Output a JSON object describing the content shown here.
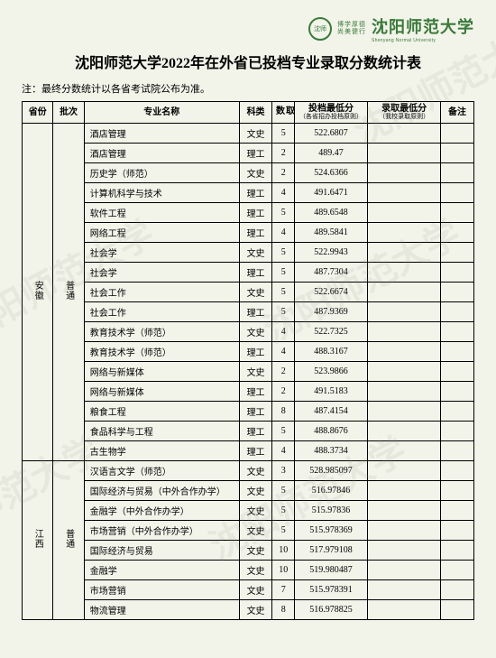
{
  "logo": {
    "badge_text": "沈师",
    "motto_line1": "博学厚德",
    "motto_line2": "尚美健行",
    "name_cn": "沈阳师范大学",
    "name_en": "Shenyang Normal University"
  },
  "title": "沈阳师范大学2022年在外省已投档专业录取分数统计表",
  "note": "注：最终分数统计以各省考试院公布为准。",
  "columns": {
    "province": "省份",
    "batch": "批次",
    "major": "专业名称",
    "category": "科类",
    "count": "录取数",
    "min1": "投档最低分",
    "min1_sub": "（各省招办投档原则）",
    "min2": "录取最低分",
    "min2_sub": "（我校录取原则）",
    "remark": "备注"
  },
  "groups": [
    {
      "province": "安徽",
      "batch": "普通",
      "rows": [
        {
          "major": "酒店管理",
          "cat": "文史",
          "num": "5",
          "s1": "522.6807",
          "s2": "",
          "rm": ""
        },
        {
          "major": "酒店管理",
          "cat": "理工",
          "num": "2",
          "s1": "489.47",
          "s2": "",
          "rm": ""
        },
        {
          "major": "历史学（师范）",
          "cat": "文史",
          "num": "2",
          "s1": "524.6366",
          "s2": "",
          "rm": ""
        },
        {
          "major": "计算机科学与技术",
          "cat": "理工",
          "num": "4",
          "s1": "491.6471",
          "s2": "",
          "rm": ""
        },
        {
          "major": "软件工程",
          "cat": "理工",
          "num": "5",
          "s1": "489.6548",
          "s2": "",
          "rm": ""
        },
        {
          "major": "网络工程",
          "cat": "理工",
          "num": "4",
          "s1": "489.5841",
          "s2": "",
          "rm": ""
        },
        {
          "major": "社会学",
          "cat": "文史",
          "num": "5",
          "s1": "522.9943",
          "s2": "",
          "rm": ""
        },
        {
          "major": "社会学",
          "cat": "理工",
          "num": "5",
          "s1": "487.7304",
          "s2": "",
          "rm": ""
        },
        {
          "major": "社会工作",
          "cat": "文史",
          "num": "5",
          "s1": "522.6674",
          "s2": "",
          "rm": ""
        },
        {
          "major": "社会工作",
          "cat": "理工",
          "num": "5",
          "s1": "487.9369",
          "s2": "",
          "rm": ""
        },
        {
          "major": "教育技术学（师范）",
          "cat": "文史",
          "num": "4",
          "s1": "522.7325",
          "s2": "",
          "rm": ""
        },
        {
          "major": "教育技术学（师范）",
          "cat": "理工",
          "num": "4",
          "s1": "488.3167",
          "s2": "",
          "rm": ""
        },
        {
          "major": "网络与新媒体",
          "cat": "文史",
          "num": "2",
          "s1": "523.9866",
          "s2": "",
          "rm": ""
        },
        {
          "major": "网络与新媒体",
          "cat": "理工",
          "num": "2",
          "s1": "491.5183",
          "s2": "",
          "rm": ""
        },
        {
          "major": "粮食工程",
          "cat": "理工",
          "num": "8",
          "s1": "487.4154",
          "s2": "",
          "rm": ""
        },
        {
          "major": "食品科学与工程",
          "cat": "理工",
          "num": "5",
          "s1": "488.8676",
          "s2": "",
          "rm": ""
        },
        {
          "major": "古生物学",
          "cat": "理工",
          "num": "4",
          "s1": "488.3734",
          "s2": "",
          "rm": ""
        }
      ]
    },
    {
      "province": "江西",
      "batch": "普通",
      "rows": [
        {
          "major": "汉语言文学（师范）",
          "cat": "文史",
          "num": "3",
          "s1": "528.985097",
          "s2": "",
          "rm": ""
        },
        {
          "major": "国际经济与贸易（中外合作办学）",
          "cat": "文史",
          "num": "5",
          "s1": "516.97846",
          "s2": "",
          "rm": ""
        },
        {
          "major": "金融学（中外合作办学）",
          "cat": "文史",
          "num": "5",
          "s1": "515.97836",
          "s2": "",
          "rm": ""
        },
        {
          "major": "市场营销（中外合作办学）",
          "cat": "文史",
          "num": "5",
          "s1": "515.978369",
          "s2": "",
          "rm": ""
        },
        {
          "major": "国际经济与贸易",
          "cat": "文史",
          "num": "10",
          "s1": "517.979108",
          "s2": "",
          "rm": ""
        },
        {
          "major": "金融学",
          "cat": "文史",
          "num": "10",
          "s1": "519.980487",
          "s2": "",
          "rm": ""
        },
        {
          "major": "市场营销",
          "cat": "文史",
          "num": "7",
          "s1": "515.978391",
          "s2": "",
          "rm": ""
        },
        {
          "major": "物流管理",
          "cat": "文史",
          "num": "8",
          "s1": "516.978825",
          "s2": "",
          "rm": ""
        }
      ]
    }
  ],
  "watermarks": [
    "沈阳师范大学",
    "沈阳师范大学",
    "沈阳师范大学",
    "沈阳师范大学",
    "沈阳师范大学"
  ],
  "colors": {
    "page_bg": "#f2f3e9",
    "brand": "#3a7a3a",
    "text": "#000000",
    "border": "#000000",
    "watermark": "rgba(150,150,140,0.12)"
  }
}
